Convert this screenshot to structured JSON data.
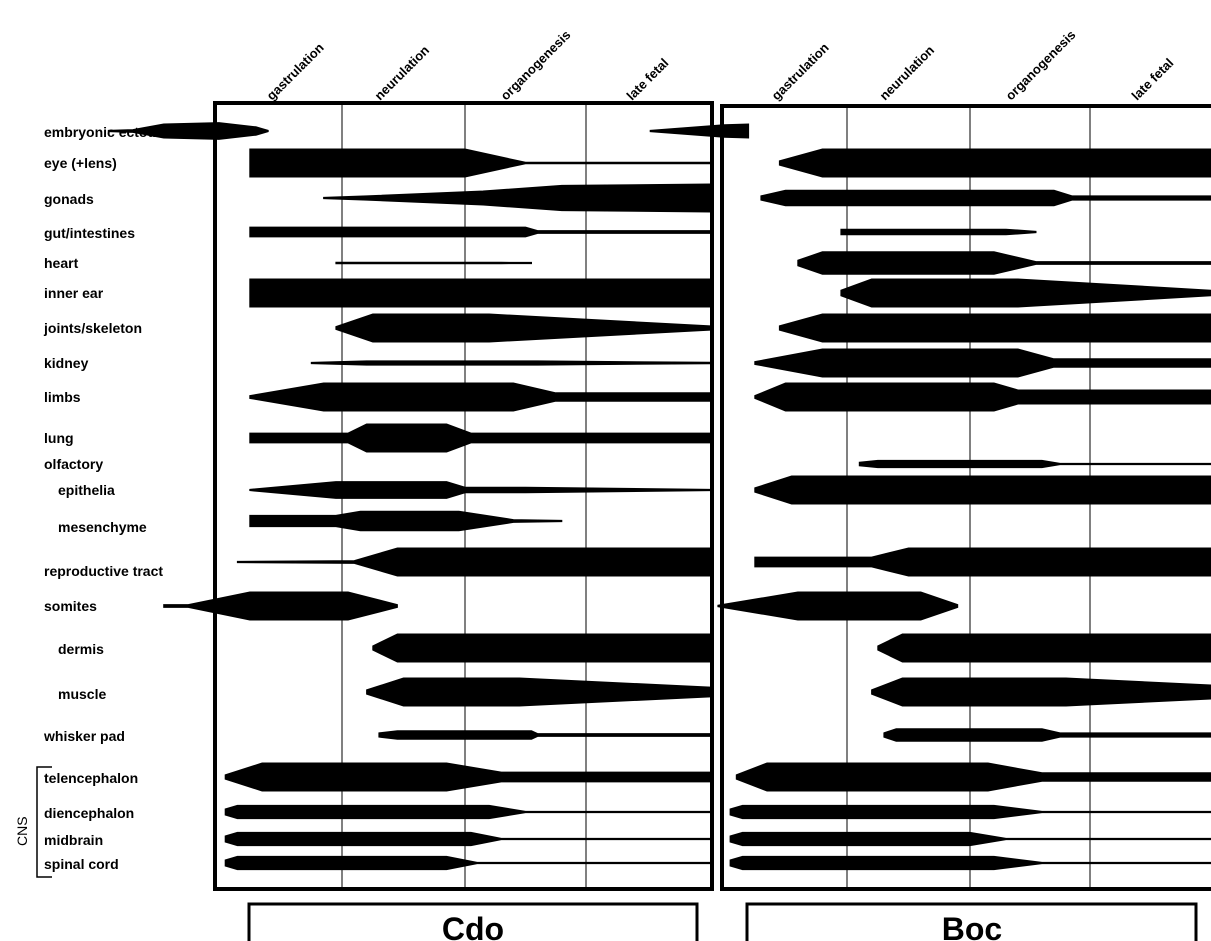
{
  "stages": [
    "gastrulation",
    "neurulation",
    "organogenesis",
    "late fetal"
  ],
  "tissues": [
    "embryonic ectoderm",
    "eye (+lens)",
    "gonads",
    "gut/intestines",
    "heart",
    "inner ear",
    "joints/skeleton",
    "kidney",
    "limbs",
    "lung",
    "olfactory",
    "epithelia",
    "mesenchyme",
    "reproductive tract",
    "somites",
    "dermis",
    "muscle",
    "whisker pad",
    "telencephalon",
    "diencephalon",
    "midbrain",
    "spinal cord"
  ],
  "cns_group_label": "CNS",
  "genes": [
    "Cdo",
    "Boc"
  ],
  "stage_scale": {
    "gastrulation": 0,
    "neurulation": 1,
    "organogenesis": 2,
    "late fetal": 3
  },
  "expression_profiles": {
    "Cdo": [
      {
        "tissue": "embryonic ectoderm",
        "profile": [
          [
            -0.9,
            0.0
          ],
          [
            -0.7,
            0.1
          ],
          [
            -0.45,
            0.5
          ],
          [
            0.0,
            0.6
          ],
          [
            0.3,
            0.3
          ],
          [
            0.4,
            0.0
          ]
        ]
      },
      {
        "tissue": "eye (+lens)",
        "profile": [
          [
            0.25,
            1.0
          ],
          [
            2.0,
            1.0
          ],
          [
            2.5,
            0.05
          ],
          [
            3.0,
            0.05
          ]
        ]
      },
      {
        "tissue": "gonads",
        "profile": [
          [
            0.85,
            0.02
          ],
          [
            1.2,
            0.15
          ],
          [
            2.15,
            0.5
          ],
          [
            2.8,
            0.9
          ],
          [
            3.0,
            1.0
          ]
        ]
      },
      {
        "tissue": "gut/intestines",
        "profile": [
          [
            0.25,
            0.35
          ],
          [
            2.5,
            0.35
          ],
          [
            2.6,
            0.1
          ],
          [
            3.0,
            0.1
          ]
        ]
      },
      {
        "tissue": "heart",
        "profile": [
          [
            0.95,
            0.05
          ],
          [
            2.3,
            0.05
          ],
          [
            2.55,
            0.02
          ]
        ]
      },
      {
        "tissue": "inner ear",
        "profile": [
          [
            0.25,
            1.0
          ],
          [
            3.0,
            1.0
          ]
        ]
      },
      {
        "tissue": "joints/skeleton",
        "profile": [
          [
            0.95,
            0.1
          ],
          [
            1.25,
            1.0
          ],
          [
            2.2,
            1.0
          ],
          [
            3.0,
            0.15
          ]
        ]
      },
      {
        "tissue": "kidney",
        "profile": [
          [
            0.75,
            0.02
          ],
          [
            1.2,
            0.15
          ],
          [
            2.6,
            0.15
          ],
          [
            3.0,
            0.05
          ]
        ]
      },
      {
        "tissue": "limbs",
        "profile": [
          [
            0.25,
            0.1
          ],
          [
            0.85,
            1.0
          ],
          [
            2.4,
            1.0
          ],
          [
            2.75,
            0.3
          ],
          [
            3.0,
            0.3
          ]
        ]
      },
      {
        "tissue": "lung",
        "profile": [
          [
            0.25,
            0.35
          ],
          [
            1.05,
            0.35
          ],
          [
            1.2,
            1.0
          ],
          [
            1.85,
            1.0
          ],
          [
            2.05,
            0.35
          ],
          [
            3.0,
            0.35
          ]
        ]
      },
      {
        "tissue": "epithelia",
        "profile": [
          [
            0.25,
            0.02
          ],
          [
            0.95,
            0.6
          ],
          [
            1.85,
            0.6
          ],
          [
            2.0,
            0.2
          ],
          [
            2.5,
            0.2
          ],
          [
            3.0,
            0.02
          ]
        ]
      },
      {
        "tissue": "mesenchyme",
        "profile": [
          [
            0.25,
            0.4
          ],
          [
            0.95,
            0.4
          ],
          [
            1.15,
            0.7
          ],
          [
            1.95,
            0.7
          ],
          [
            2.4,
            0.1
          ],
          [
            2.8,
            0.02
          ]
        ]
      },
      {
        "tissue": "reproductive tract",
        "profile": [
          [
            0.15,
            0.02
          ],
          [
            1.1,
            0.1
          ],
          [
            1.45,
            1.0
          ],
          [
            3.0,
            1.0
          ]
        ]
      },
      {
        "tissue": "somites",
        "profile": [
          [
            -0.45,
            0.1
          ],
          [
            -0.25,
            0.1
          ],
          [
            0.25,
            1.0
          ],
          [
            1.05,
            1.0
          ],
          [
            1.45,
            0.1
          ]
        ]
      },
      {
        "tissue": "dermis",
        "profile": [
          [
            1.25,
            0.15
          ],
          [
            1.45,
            1.0
          ],
          [
            3.0,
            1.0
          ]
        ]
      },
      {
        "tissue": "muscle",
        "profile": [
          [
            1.2,
            0.15
          ],
          [
            1.5,
            1.0
          ],
          [
            2.45,
            1.0
          ],
          [
            3.0,
            0.35
          ]
        ]
      },
      {
        "tissue": "whisker pad",
        "profile": [
          [
            1.3,
            0.15
          ],
          [
            1.45,
            0.3
          ],
          [
            2.55,
            0.3
          ],
          [
            2.6,
            0.1
          ],
          [
            3.0,
            0.1
          ]
        ]
      },
      {
        "tissue": "telencephalon",
        "profile": [
          [
            0.05,
            0.15
          ],
          [
            0.35,
            1.0
          ],
          [
            1.85,
            1.0
          ],
          [
            2.3,
            0.35
          ],
          [
            3.0,
            0.35
          ]
        ]
      },
      {
        "tissue": "diencephalon",
        "profile": [
          [
            0.05,
            0.25
          ],
          [
            0.15,
            0.55
          ],
          [
            2.2,
            0.55
          ],
          [
            2.5,
            0.05
          ],
          [
            3.0,
            0.05
          ]
        ]
      },
      {
        "tissue": "midbrain",
        "profile": [
          [
            0.05,
            0.25
          ],
          [
            0.15,
            0.55
          ],
          [
            2.05,
            0.55
          ],
          [
            2.3,
            0.05
          ],
          [
            3.0,
            0.05
          ]
        ]
      },
      {
        "tissue": "spinal cord",
        "profile": [
          [
            0.05,
            0.25
          ],
          [
            0.15,
            0.55
          ],
          [
            1.85,
            0.55
          ],
          [
            2.1,
            0.05
          ],
          [
            3.0,
            0.05
          ]
        ]
      }
    ],
    "Boc": [
      {
        "tissue": "embryonic ectoderm",
        "profile": [
          [
            -0.6,
            0.0
          ],
          [
            0.0,
            0.45
          ],
          [
            0.2,
            0.5
          ]
        ]
      },
      {
        "tissue": "eye (+lens)",
        "profile": [
          [
            0.45,
            0.15
          ],
          [
            0.8,
            1.0
          ],
          [
            3.0,
            1.0
          ]
        ]
      },
      {
        "tissue": "gonads",
        "profile": [
          [
            0.3,
            0.15
          ],
          [
            0.5,
            0.55
          ],
          [
            2.7,
            0.55
          ],
          [
            2.85,
            0.15
          ],
          [
            3.0,
            0.15
          ]
        ]
      },
      {
        "tissue": "gut/intestines",
        "profile": [
          [
            0.95,
            0.2
          ],
          [
            2.3,
            0.2
          ],
          [
            2.55,
            0.02
          ]
        ]
      },
      {
        "tissue": "heart",
        "profile": [
          [
            0.6,
            0.2
          ],
          [
            0.8,
            0.8
          ],
          [
            2.2,
            0.8
          ],
          [
            2.55,
            0.1
          ],
          [
            3.0,
            0.1
          ]
        ]
      },
      {
        "tissue": "inner ear",
        "profile": [
          [
            0.95,
            0.2
          ],
          [
            1.2,
            1.0
          ],
          [
            2.4,
            1.0
          ],
          [
            3.0,
            0.2
          ]
        ]
      },
      {
        "tissue": "joints/skeleton",
        "profile": [
          [
            0.45,
            0.15
          ],
          [
            0.8,
            1.0
          ],
          [
            3.0,
            1.0
          ]
        ]
      },
      {
        "tissue": "kidney",
        "profile": [
          [
            0.25,
            0.1
          ],
          [
            0.8,
            1.0
          ],
          [
            2.4,
            1.0
          ],
          [
            2.7,
            0.3
          ],
          [
            3.0,
            0.3
          ]
        ]
      },
      {
        "tissue": "limbs",
        "profile": [
          [
            0.25,
            0.1
          ],
          [
            0.5,
            1.0
          ],
          [
            2.2,
            1.0
          ],
          [
            2.4,
            0.5
          ],
          [
            3.0,
            0.5
          ]
        ]
      },
      {
        "tissue": "olfactory",
        "profile": [
          [
            1.1,
            0.15
          ],
          [
            1.25,
            0.3
          ],
          [
            2.6,
            0.3
          ],
          [
            2.75,
            0.05
          ],
          [
            3.0,
            0.05
          ]
        ]
      },
      {
        "tissue": "epithelia",
        "profile": [
          [
            0.25,
            0.15
          ],
          [
            0.55,
            1.0
          ],
          [
            3.0,
            1.0
          ]
        ]
      },
      {
        "tissue": "reproductive tract",
        "profile": [
          [
            0.25,
            0.35
          ],
          [
            1.2,
            0.35
          ],
          [
            1.5,
            1.0
          ],
          [
            3.0,
            1.0
          ]
        ]
      },
      {
        "tissue": "somites",
        "profile": [
          [
            -0.05,
            0.05
          ],
          [
            0.6,
            1.0
          ],
          [
            1.6,
            1.0
          ],
          [
            1.9,
            0.1
          ]
        ]
      },
      {
        "tissue": "dermis",
        "profile": [
          [
            1.25,
            0.15
          ],
          [
            1.45,
            1.0
          ],
          [
            3.0,
            1.0
          ]
        ]
      },
      {
        "tissue": "muscle",
        "profile": [
          [
            1.2,
            0.15
          ],
          [
            1.45,
            1.0
          ],
          [
            2.8,
            1.0
          ],
          [
            3.0,
            0.5
          ]
        ]
      },
      {
        "tissue": "whisker pad",
        "profile": [
          [
            1.3,
            0.15
          ],
          [
            1.4,
            0.45
          ],
          [
            2.6,
            0.45
          ],
          [
            2.75,
            0.15
          ],
          [
            3.0,
            0.15
          ]
        ]
      },
      {
        "tissue": "telencephalon",
        "profile": [
          [
            0.1,
            0.15
          ],
          [
            0.35,
            1.0
          ],
          [
            2.15,
            1.0
          ],
          [
            2.6,
            0.3
          ],
          [
            3.0,
            0.3
          ]
        ]
      },
      {
        "tissue": "diencephalon",
        "profile": [
          [
            0.05,
            0.25
          ],
          [
            0.15,
            0.55
          ],
          [
            2.2,
            0.55
          ],
          [
            2.6,
            0.05
          ],
          [
            3.0,
            0.05
          ]
        ]
      },
      {
        "tissue": "midbrain",
        "profile": [
          [
            0.05,
            0.25
          ],
          [
            0.15,
            0.55
          ],
          [
            2.0,
            0.55
          ],
          [
            2.3,
            0.05
          ],
          [
            3.0,
            0.05
          ]
        ]
      },
      {
        "tissue": "spinal cord",
        "profile": [
          [
            0.05,
            0.25
          ],
          [
            0.15,
            0.55
          ],
          [
            2.2,
            0.55
          ],
          [
            2.6,
            0.05
          ],
          [
            3.0,
            0.05
          ]
        ]
      }
    ]
  }
}
